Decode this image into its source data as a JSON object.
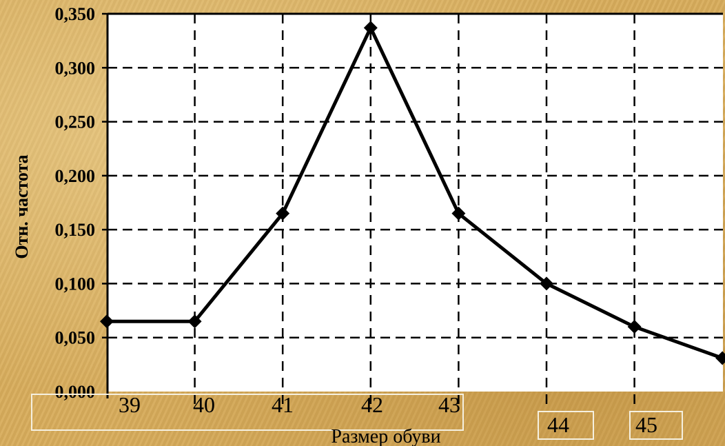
{
  "chart_data": {
    "type": "line",
    "xlabel": "Размер обуви",
    "ylabel": "Отн. частота",
    "x_tick_labels": [
      "39",
      "40",
      "41",
      "42",
      "43",
      "44",
      "45"
    ],
    "y_tick_labels": [
      "0,000",
      "0,050",
      "0,100",
      "0,150",
      "0,200",
      "0,250",
      "0,300",
      "0,350"
    ],
    "ylim": [
      0,
      0.35
    ],
    "grid": true,
    "series": [
      {
        "x": [
          39,
          40,
          41,
          42,
          43,
          44,
          45,
          46
        ],
        "y": [
          0.065,
          0.065,
          0.165,
          0.337,
          0.165,
          0.1,
          0.06,
          0.031
        ]
      }
    ],
    "line_color": "#000000",
    "grid_color": "#000000"
  }
}
